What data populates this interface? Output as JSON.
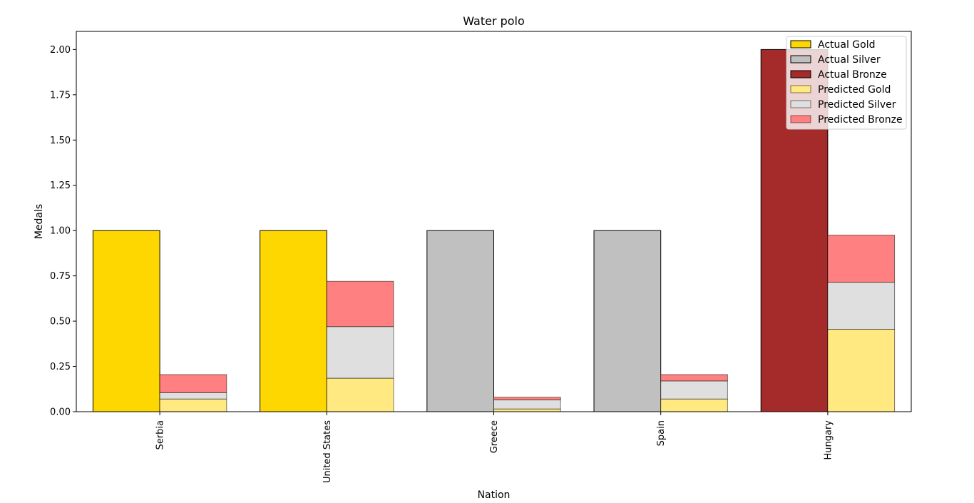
{
  "chart_data": {
    "type": "bar",
    "title": "Water polo",
    "xlabel": "Nation",
    "ylabel": "Medals",
    "categories": [
      "Serbia",
      "United States",
      "Greece",
      "Spain",
      "Hungary"
    ],
    "ylim": [
      0,
      2.1
    ],
    "yticks": [
      "0.00",
      "0.25",
      "0.50",
      "0.75",
      "1.00",
      "1.25",
      "1.50",
      "1.75",
      "2.00"
    ],
    "legend_position": "top-right",
    "actual": [
      {
        "name": "Actual Gold",
        "color": "#FFD700",
        "values": [
          1,
          1,
          0,
          0,
          0
        ]
      },
      {
        "name": "Actual Silver",
        "color": "#C0C0C0",
        "values": [
          0,
          0,
          1,
          1,
          0
        ]
      },
      {
        "name": "Actual Bronze",
        "color": "#A52A2A",
        "values": [
          0,
          0,
          0,
          0,
          2
        ]
      }
    ],
    "predicted": [
      {
        "name": "Predicted Gold",
        "color": "#FFE980",
        "values": [
          0.07,
          0.185,
          0.015,
          0.07,
          0.455
        ]
      },
      {
        "name": "Predicted Silver",
        "color": "#DFDFDF",
        "values": [
          0.035,
          0.285,
          0.05,
          0.1,
          0.26
        ]
      },
      {
        "name": "Predicted Bronze",
        "color": "#FF8080",
        "values": [
          0.1,
          0.25,
          0.015,
          0.035,
          0.26
        ]
      }
    ]
  }
}
